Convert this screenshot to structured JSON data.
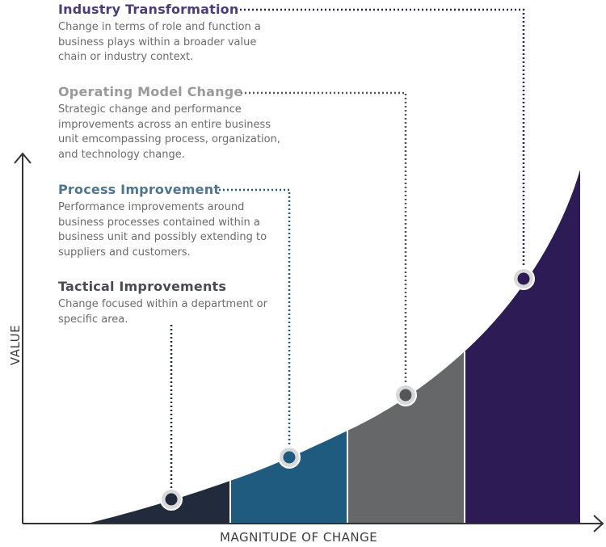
{
  "stages": [
    {
      "title": "Industry Transformation",
      "description": "Change in terms of role and function a business plays within a broader value chain or industry context.",
      "color": "#4a3e7a"
    },
    {
      "title": "Operating Model Change",
      "description": "Strategic change and performance improvements across an entire business unit emcompassing process, organization, and technology change.",
      "color": "#9a9a9a"
    },
    {
      "title": "Process Improvement",
      "description": "Performance improvements around business processes contained within a business unit and possibly extending to suppliers and customers.",
      "color": "#4f7590"
    },
    {
      "title": "Tactical Improvements",
      "description": "Change focused within a department or specific area.",
      "color": "#4a4a55"
    }
  ],
  "axes": {
    "x_label": "MAGNITUDE OF CHANGE",
    "y_label": "VALUE"
  },
  "fill_colors": {
    "tactical": "#222b3c",
    "process": "#1f5a7f",
    "operating": "#666769",
    "industry": "#2d1b55"
  }
}
